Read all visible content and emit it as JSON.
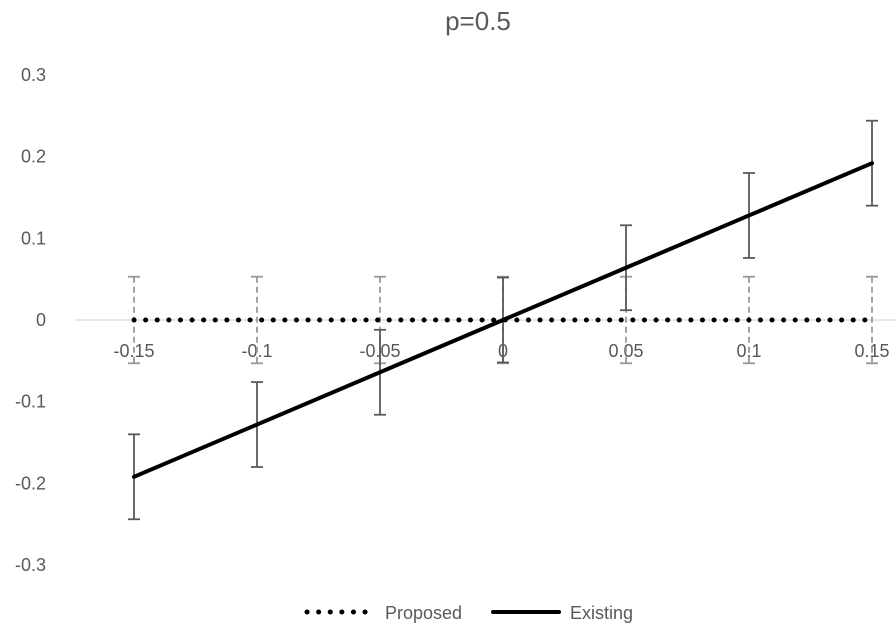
{
  "chart_data": {
    "type": "line",
    "title": "p=0.5",
    "x": [
      -0.15,
      -0.1,
      -0.05,
      0,
      0.05,
      0.1,
      0.15
    ],
    "x_tick_labels": [
      "-0.15",
      "-0.1",
      "-0.05",
      "0",
      "0.05",
      "0.1",
      "0.15"
    ],
    "y_tick_labels": [
      "0.3",
      "0.2",
      "0.1",
      "0",
      "-0.1",
      "-0.2",
      "-0.3"
    ],
    "ylim": [
      -0.3,
      0.3
    ],
    "xlim": [
      -0.15,
      0.15
    ],
    "grid": false,
    "legend_position": "bottom",
    "series": [
      {
        "name": "Proposed",
        "style": "dotted",
        "color": "#000000",
        "values": [
          0,
          0,
          0,
          0,
          0,
          0,
          0
        ],
        "error": [
          0.053,
          0.053,
          0.053,
          0.053,
          0.053,
          0.053,
          0.053
        ],
        "error_style": "dashed",
        "error_color": "#999999"
      },
      {
        "name": "Existing",
        "style": "solid",
        "color": "#000000",
        "values": [
          -0.192,
          -0.128,
          -0.064,
          0,
          0.064,
          0.128,
          0.192
        ],
        "error": [
          0.052,
          0.052,
          0.052,
          0.052,
          0.052,
          0.052,
          0.052
        ],
        "error_style": "solid",
        "error_color": "#595959"
      }
    ]
  }
}
